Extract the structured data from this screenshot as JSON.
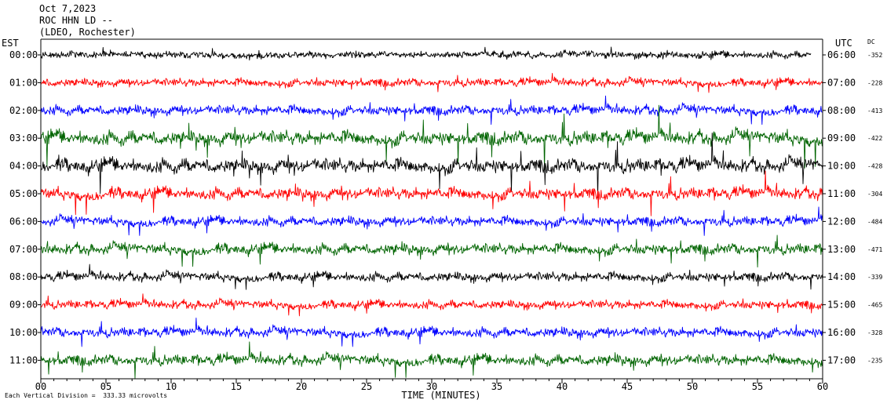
{
  "header": {
    "date": "Oct 7,2023",
    "station": "ROC HHN LD --",
    "network": "(LDEO, Rochester)"
  },
  "chart_data": {
    "type": "line",
    "title": "Oct 7,2023",
    "subtitle": "ROC HHN LD -- (LDEO, Rochester)",
    "xlabel": "TIME (MINUTES)",
    "xlim": [
      0,
      60
    ],
    "x_ticks": [
      "00",
      "05",
      "10",
      "15",
      "20",
      "25",
      "30",
      "35",
      "40",
      "45",
      "50",
      "55",
      "60"
    ],
    "left_axis_title": "EST",
    "right_axis_title": "UTC",
    "dc_title": "DC",
    "rows": [
      {
        "est": "00:00",
        "utc": "06:00",
        "dc": "-352",
        "color": "#000000",
        "amplitude": 0.35
      },
      {
        "est": "01:00",
        "utc": "07:00",
        "dc": "-228",
        "color": "#ff0000",
        "amplitude": 0.45
      },
      {
        "est": "02:00",
        "utc": "08:00",
        "dc": "-413",
        "color": "#0000ff",
        "amplitude": 0.6
      },
      {
        "est": "03:00",
        "utc": "09:00",
        "dc": "-422",
        "color": "#006400",
        "amplitude": 1.0
      },
      {
        "est": "04:00",
        "utc": "10:00",
        "dc": "-428",
        "color": "#000000",
        "amplitude": 1.0
      },
      {
        "est": "05:00",
        "utc": "11:00",
        "dc": "-304",
        "color": "#ff0000",
        "amplitude": 0.8
      },
      {
        "est": "06:00",
        "utc": "12:00",
        "dc": "-484",
        "color": "#0000ff",
        "amplitude": 0.6
      },
      {
        "est": "07:00",
        "utc": "13:00",
        "dc": "-471",
        "color": "#006400",
        "amplitude": 0.7
      },
      {
        "est": "08:00",
        "utc": "14:00",
        "dc": "-339",
        "color": "#000000",
        "amplitude": 0.55
      },
      {
        "est": "09:00",
        "utc": "15:00",
        "dc": "-465",
        "color": "#ff0000",
        "amplitude": 0.5
      },
      {
        "est": "10:00",
        "utc": "16:00",
        "dc": "-328",
        "color": "#0000ff",
        "amplitude": 0.6
      },
      {
        "est": "11:00",
        "utc": "17:00",
        "dc": "-235",
        "color": "#006400",
        "amplitude": 0.7
      }
    ],
    "scale_note": "Each Vertical Division =  333.33 microvolts",
    "grid": false
  }
}
